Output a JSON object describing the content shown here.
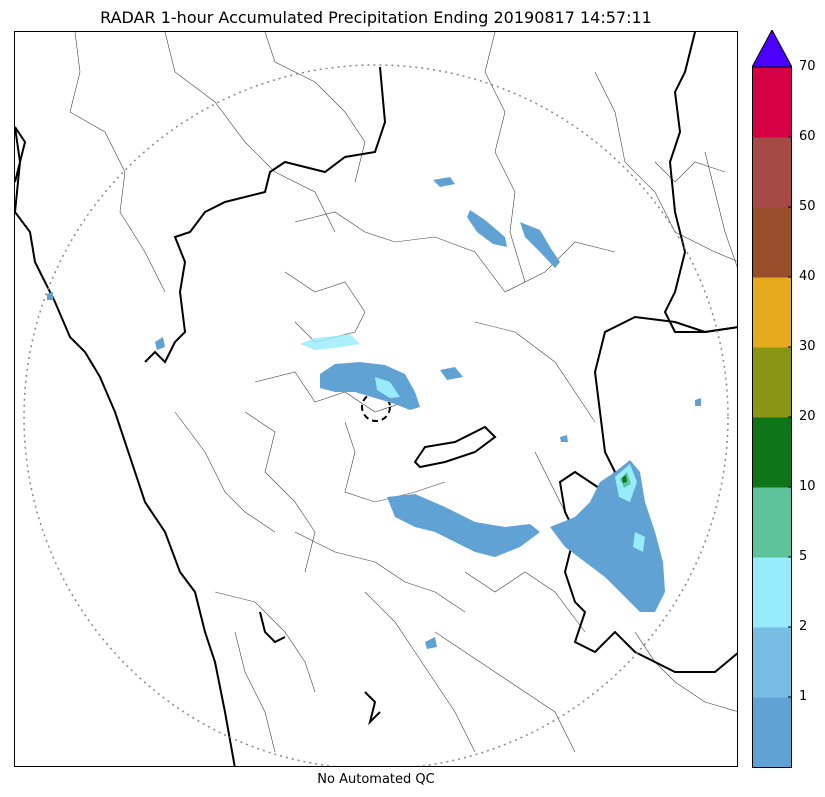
{
  "title": "RADAR 1-hour Accumulated Precipitation Ending 20190817 14:57:11",
  "caption": "No Automated QC",
  "colorbar": {
    "labels": [
      "1",
      "2",
      "5",
      "10",
      "20",
      "30",
      "40",
      "50",
      "60",
      "70"
    ],
    "bins": [
      {
        "color": "#61a2d4"
      },
      {
        "color": "#78bde3"
      },
      {
        "color": "#97ecfc"
      },
      {
        "color": "#5ec39a"
      },
      {
        "color": "#0e7519"
      },
      {
        "color": "#8b9515"
      },
      {
        "color": "#e6aa1e"
      },
      {
        "color": "#984d2b"
      },
      {
        "color": "#a54a44"
      },
      {
        "color": "#d60045"
      }
    ],
    "over_color": "#4b00ff"
  },
  "map": {
    "range_ring_color": "#888888",
    "radar_site": "dashed-circle"
  }
}
